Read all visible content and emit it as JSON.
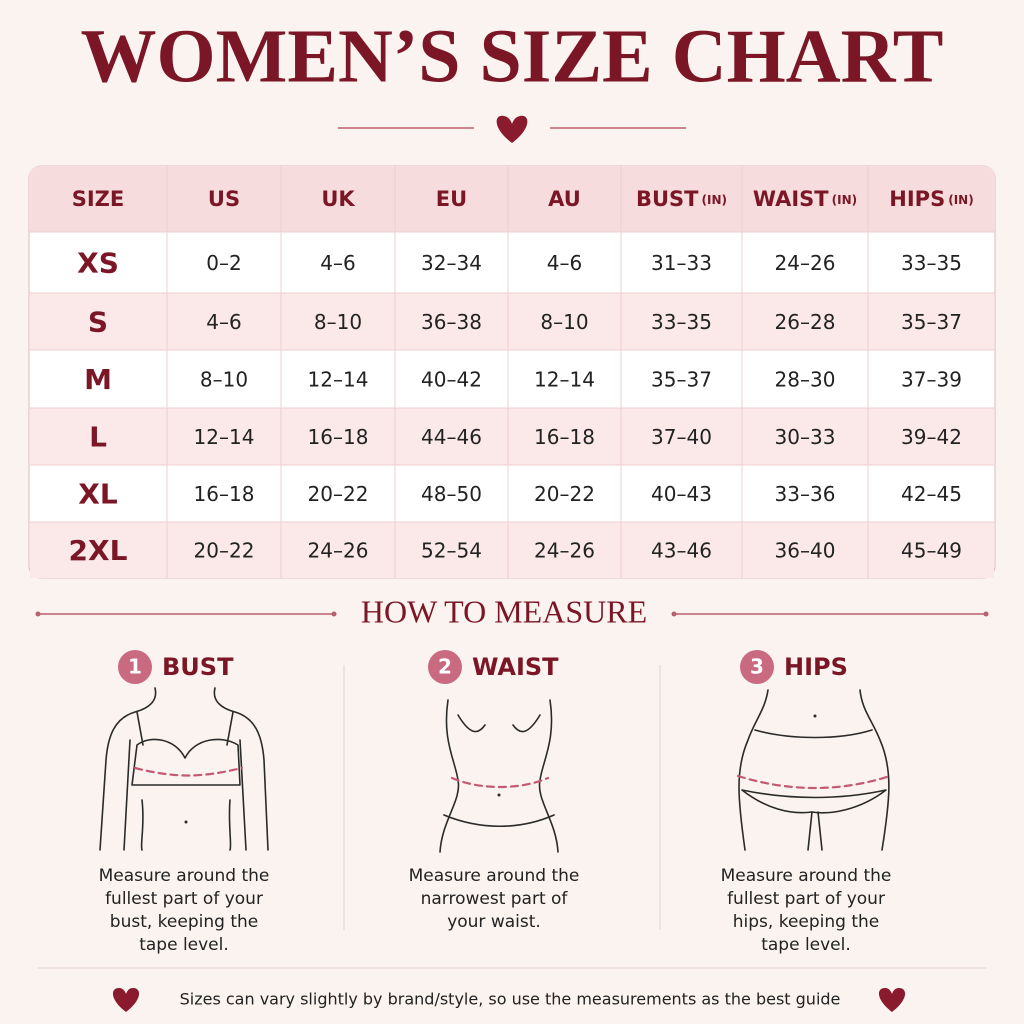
{
  "title": "WOMEN’S SIZE CHART",
  "table": {
    "header": [
      {
        "label": "SIZE"
      },
      {
        "label": "US"
      },
      {
        "label": "UK"
      },
      {
        "label": "EU"
      },
      {
        "label": "AU"
      },
      {
        "label": "BUST",
        "unit": "(IN)"
      },
      {
        "label": "WAIST",
        "unit": "(IN)"
      },
      {
        "label": "HIPS",
        "unit": "(IN)"
      }
    ],
    "rows": [
      [
        "XS",
        "0–2",
        "4–6",
        "32–34",
        "4–6",
        "31–33",
        "24–26",
        "33–35"
      ],
      [
        "S",
        "4–6",
        "8–10",
        "36–38",
        "8–10",
        "33–35",
        "26–28",
        "35–37"
      ],
      [
        "M",
        "8–10",
        "12–14",
        "40–42",
        "12–14",
        "35–37",
        "28–30",
        "37–39"
      ],
      [
        "L",
        "12–14",
        "16–18",
        "44–46",
        "16–18",
        "37–40",
        "30–33",
        "39–42"
      ],
      [
        "XL",
        "16–18",
        "20–22",
        "48–50",
        "20–22",
        "40–43",
        "33–36",
        "42–45"
      ],
      [
        "2XL",
        "20–22",
        "24–26",
        "52–54",
        "24–26",
        "43–46",
        "36–40",
        "45–49"
      ]
    ]
  },
  "measure": {
    "title": "HOW TO MEASURE",
    "steps": [
      {
        "number": "1",
        "label": "BUST",
        "text": [
          "Measure around the",
          "fullest part of your",
          "bust, keeping the",
          "tape level."
        ]
      },
      {
        "number": "2",
        "label": "WAIST",
        "text": [
          "Measure around the",
          "narrowest part of",
          "your waist."
        ]
      },
      {
        "number": "3",
        "label": "HIPS",
        "text": [
          "Measure around the",
          "fullest part of your",
          "hips, keeping the",
          "tape level."
        ]
      }
    ]
  },
  "footer": "Sizes can vary slightly by brand/style, so use the measurements as the best guide"
}
